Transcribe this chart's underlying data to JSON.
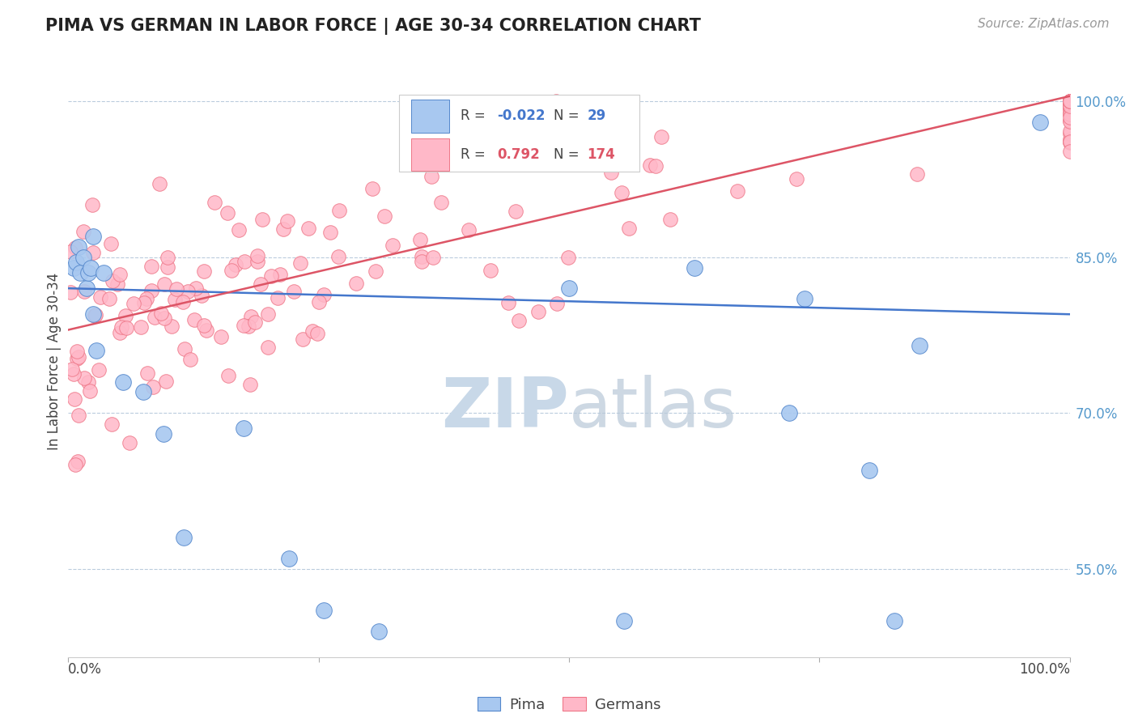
{
  "title": "PIMA VS GERMAN IN LABOR FORCE | AGE 30-34 CORRELATION CHART",
  "source": "Source: ZipAtlas.com",
  "ylabel": "In Labor Force | Age 30-34",
  "xlim": [
    0.0,
    1.0
  ],
  "ylim": [
    0.465,
    1.035
  ],
  "ytick_labels": [
    "55.0%",
    "70.0%",
    "85.0%",
    "100.0%"
  ],
  "ytick_values": [
    0.55,
    0.7,
    0.85,
    1.0
  ],
  "pima_R": -0.022,
  "pima_N": 29,
  "german_R": 0.792,
  "german_N": 174,
  "pima_color": "#A8C8F0",
  "pima_edge_color": "#5588CC",
  "german_color": "#FFB8C8",
  "german_edge_color": "#EE7788",
  "pima_line_color": "#4477CC",
  "german_line_color": "#DD5566",
  "background_color": "#ffffff",
  "watermark_color": "#C8D8E8",
  "grid_color": "#BBCCDD",
  "ytick_color": "#5599CC",
  "pima_x": [
    0.005,
    0.008,
    0.01,
    0.012,
    0.015,
    0.018,
    0.02,
    0.022,
    0.025,
    0.028,
    0.035,
    0.055,
    0.075,
    0.095,
    0.115,
    0.175,
    0.22,
    0.255,
    0.025,
    0.5,
    0.555,
    0.625,
    0.72,
    0.735,
    0.8,
    0.825,
    0.85,
    0.97,
    0.31
  ],
  "pima_y": [
    0.84,
    0.845,
    0.86,
    0.835,
    0.85,
    0.82,
    0.835,
    0.84,
    0.87,
    0.76,
    0.835,
    0.73,
    0.72,
    0.68,
    0.58,
    0.685,
    0.56,
    0.51,
    0.795,
    0.82,
    0.5,
    0.84,
    0.7,
    0.81,
    0.645,
    0.5,
    0.765,
    0.98,
    0.49
  ],
  "pima_trend_x": [
    0.0,
    1.0
  ],
  "pima_trend_y": [
    0.82,
    0.795
  ],
  "german_trend_x": [
    0.0,
    1.0
  ],
  "german_trend_y": [
    0.78,
    1.005
  ]
}
